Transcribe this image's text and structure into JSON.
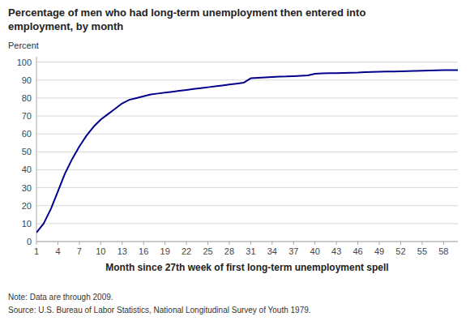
{
  "chart_data": {
    "type": "line",
    "title": [
      "Percentage of men who had long-term unemployment then entered into",
      "employment, by month"
    ],
    "x_label": "Month since 27th week of first long-term unemployment spell",
    "y_label": "Percent",
    "note": "Note: Data are through 2009.",
    "source": "Source: U.S. Bureau of Labor Statistics, National Longitudinal Survey of Youth 1979.",
    "color": "#00008B",
    "grid": true,
    "xlim": [
      1,
      60
    ],
    "ylim": [
      0,
      103
    ],
    "xticks": [
      1,
      4,
      7,
      10,
      13,
      16,
      19,
      22,
      25,
      28,
      31,
      34,
      37,
      40,
      43,
      46,
      49,
      52,
      55,
      58
    ],
    "yticks": [
      0,
      10,
      20,
      30,
      40,
      50,
      60,
      70,
      80,
      90,
      100
    ],
    "x": [
      1,
      2,
      3,
      4,
      5,
      6,
      7,
      8,
      9,
      10,
      11,
      12,
      13,
      14,
      15,
      16,
      17,
      18,
      19,
      20,
      21,
      22,
      23,
      24,
      25,
      26,
      27,
      28,
      29,
      30,
      31,
      32,
      33,
      34,
      35,
      36,
      37,
      38,
      39,
      40,
      41,
      42,
      43,
      44,
      45,
      46,
      47,
      48,
      49,
      50,
      51,
      52,
      53,
      54,
      55,
      56,
      57,
      58,
      59,
      60
    ],
    "values": [
      5,
      10,
      18,
      28,
      38,
      46,
      53,
      59,
      64,
      68,
      71,
      74,
      77,
      79,
      80,
      81,
      82,
      82.5,
      83,
      83.5,
      84,
      84.5,
      85,
      85.5,
      86,
      86.5,
      87,
      87.5,
      88,
      88.5,
      91,
      91.3,
      91.5,
      91.7,
      91.9,
      92,
      92.2,
      92.4,
      92.6,
      93.5,
      93.7,
      93.8,
      93.9,
      94,
      94.1,
      94.2,
      94.4,
      94.5,
      94.6,
      94.7,
      94.8,
      94.9,
      95,
      95.1,
      95.2,
      95.3,
      95.4,
      95.5,
      95.55,
      95.6
    ]
  }
}
